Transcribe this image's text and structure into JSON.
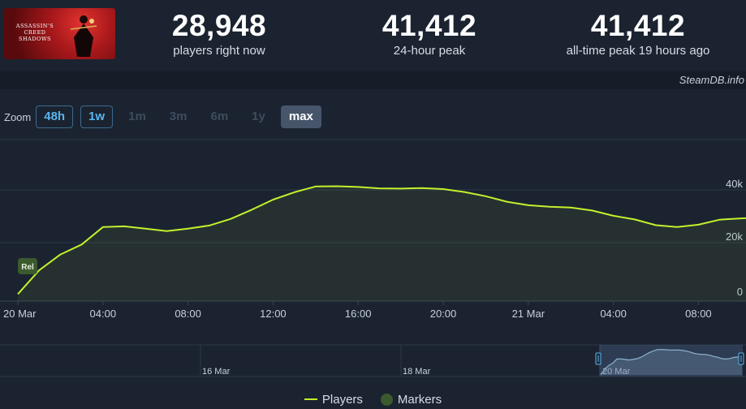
{
  "game": {
    "title_lines": [
      "ASSASSIN'S",
      "CREED",
      "SHADOWS"
    ]
  },
  "stats": [
    {
      "value": "28,948",
      "label": "players right now"
    },
    {
      "value": "41,412",
      "label": "24-hour peak"
    },
    {
      "value": "41,412",
      "label": "all-time peak 19 hours ago"
    }
  ],
  "credit": "SteamDB.info",
  "zoom": {
    "label": "Zoom",
    "buttons": [
      {
        "label": "48h",
        "state": "link"
      },
      {
        "label": "1w",
        "state": "link"
      },
      {
        "label": "1m",
        "state": "dim"
      },
      {
        "label": "3m",
        "state": "dim"
      },
      {
        "label": "6m",
        "state": "dim"
      },
      {
        "label": "1y",
        "state": "dim"
      },
      {
        "label": "max",
        "state": "active"
      }
    ]
  },
  "colors": {
    "line": "#c3f02c",
    "marker": "#3b5a2e",
    "grid": "#2c3747",
    "text": "#c7d0db"
  },
  "chart_data": {
    "type": "line",
    "series": [
      {
        "name": "Players",
        "x_hours": [
          0,
          1,
          2,
          3,
          4,
          5,
          6,
          7,
          8,
          9,
          10,
          11,
          12,
          13,
          14,
          15,
          16,
          17,
          18,
          19,
          20,
          21,
          22,
          23,
          24,
          25,
          26,
          27,
          28,
          29,
          30,
          31,
          32,
          33,
          34,
          35
        ],
        "values": [
          500,
          9500,
          15500,
          19300,
          25900,
          26200,
          25300,
          24400,
          25300,
          26500,
          29000,
          32500,
          36300,
          39100,
          41300,
          41400,
          41100,
          40600,
          40500,
          40700,
          40300,
          39200,
          37600,
          35500,
          34200,
          33600,
          33300,
          32200,
          30200,
          28800,
          26600,
          25900,
          26800,
          28700,
          29200,
          29500
        ]
      }
    ],
    "x_ticks": [
      "20 Mar",
      "04:00",
      "08:00",
      "12:00",
      "16:00",
      "20:00",
      "21 Mar",
      "04:00",
      "08:00"
    ],
    "x_tick_hours": [
      0,
      4,
      8,
      12,
      16,
      20,
      24,
      28,
      32
    ],
    "y_ticks": [
      "0",
      "20k",
      "40k"
    ],
    "y_tick_values": [
      0,
      20000,
      40000
    ],
    "ylim": [
      0,
      60000
    ],
    "grid": true,
    "legend_position": "bottom-center",
    "marker_label": "Rel",
    "legend": [
      "Players",
      "Markers"
    ]
  },
  "navigator": {
    "labels": [
      "16 Mar",
      "18 Mar",
      "20 Mar"
    ]
  }
}
